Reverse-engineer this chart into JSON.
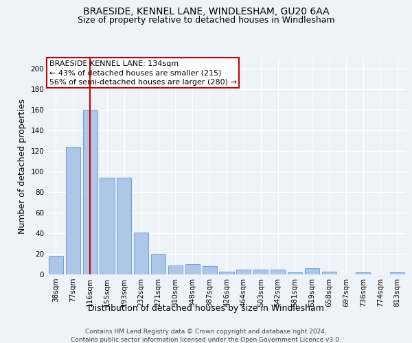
{
  "title1": "BRAESIDE, KENNEL LANE, WINDLESHAM, GU20 6AA",
  "title2": "Size of property relative to detached houses in Windlesham",
  "xlabel": "Distribution of detached houses by size in Windlesham",
  "ylabel": "Number of detached properties",
  "categories": [
    "38sqm",
    "77sqm",
    "116sqm",
    "155sqm",
    "193sqm",
    "232sqm",
    "271sqm",
    "310sqm",
    "348sqm",
    "387sqm",
    "426sqm",
    "464sqm",
    "503sqm",
    "542sqm",
    "581sqm",
    "619sqm",
    "658sqm",
    "697sqm",
    "736sqm",
    "774sqm",
    "813sqm"
  ],
  "values": [
    18,
    124,
    160,
    94,
    94,
    41,
    20,
    9,
    10,
    8,
    3,
    5,
    5,
    5,
    2,
    6,
    3,
    0,
    2,
    0,
    2
  ],
  "bar_color": "#aec6e8",
  "bar_edge_color": "#5b9bd5",
  "vline_x": 2,
  "vline_color": "#cc0000",
  "annotation_title": "BRAESIDE KENNEL LANE: 134sqm",
  "annotation_line1": "← 43% of detached houses are smaller (215)",
  "annotation_line2": "56% of semi-detached houses are larger (280) →",
  "annotation_box_color": "#ffffff",
  "annotation_box_edge_color": "#cc0000",
  "ylim": [
    0,
    210
  ],
  "yticks": [
    0,
    20,
    40,
    60,
    80,
    100,
    120,
    140,
    160,
    180,
    200
  ],
  "footer1": "Contains HM Land Registry data © Crown copyright and database right 2024.",
  "footer2": "Contains public sector information licensed under the Open Government Licence v3.0.",
  "background_color": "#eef2f9",
  "plot_bg_color": "#eef2f9",
  "grid_color": "#ffffff",
  "title_fontsize": 10,
  "subtitle_fontsize": 9,
  "axis_label_fontsize": 9,
  "tick_fontsize": 7.5,
  "footer_fontsize": 6.5,
  "annot_fontsize": 8
}
